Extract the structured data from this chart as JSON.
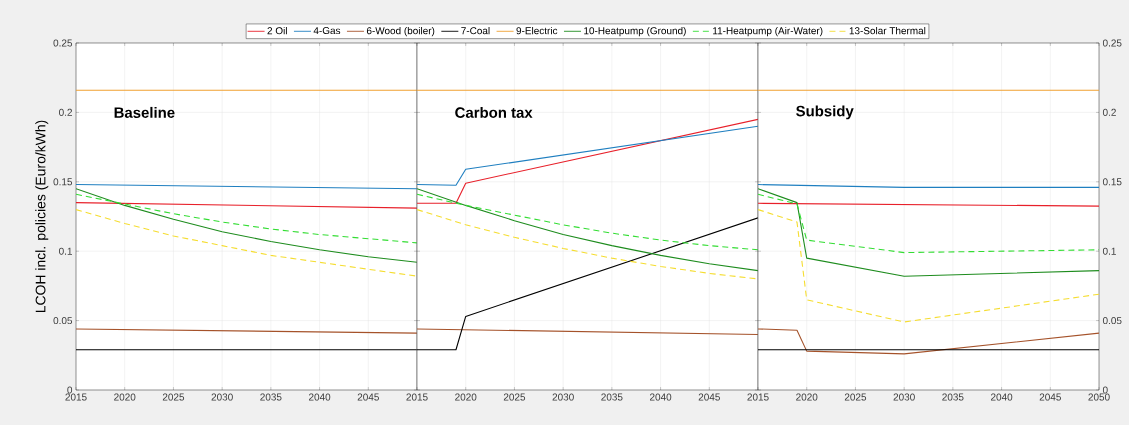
{
  "chart_data": [
    {
      "type": "line",
      "title": "Baseline",
      "ylabel": "LCOH incl. policies (Euro/kWh)",
      "xlim": [
        2015,
        2050
      ],
      "ylim": [
        0,
        0.25
      ],
      "xticks": [
        2015,
        2020,
        2025,
        2030,
        2035,
        2040,
        2045
      ],
      "yticks": [
        0,
        0.05,
        0.1,
        0.15,
        0.2,
        0.25
      ],
      "grid": true,
      "legend": "top",
      "x": [
        2015,
        2020,
        2025,
        2030,
        2035,
        2040,
        2045,
        2050
      ],
      "series": [
        {
          "name": "2 Oil",
          "color": "#e8202a",
          "x": [
            2015,
            2050
          ],
          "values": [
            0.135,
            0.131
          ]
        },
        {
          "name": "4-Gas",
          "color": "#1f7fc0",
          "x": [
            2015,
            2050
          ],
          "values": [
            0.148,
            0.145
          ]
        },
        {
          "name": "6-Wood (boiler)",
          "color": "#a5522a",
          "x": [
            2015,
            2050
          ],
          "values": [
            0.044,
            0.041
          ]
        },
        {
          "name": "7-Coal",
          "color": "#000000",
          "x": [
            2015,
            2050
          ],
          "values": [
            0.029,
            0.029
          ]
        },
        {
          "name": "9-Electric",
          "color": "#f0a030",
          "x": [
            2015,
            2050
          ],
          "values": [
            0.216,
            0.216
          ]
        },
        {
          "name": "10-Heatpump (Ground)",
          "color": "#1e8c1e",
          "values": [
            0.145,
            0.133,
            0.123,
            0.114,
            0.107,
            0.101,
            0.096,
            0.092
          ]
        },
        {
          "name": "11-Heatpump (Air-Water)",
          "color": "#33dd33",
          "line_style": "dashed",
          "values": [
            0.141,
            0.134,
            0.127,
            0.121,
            0.116,
            0.112,
            0.109,
            0.106
          ]
        },
        {
          "name": "13-Solar Thermal",
          "color": "#f5dd30",
          "line_style": "dashed",
          "values": [
            0.13,
            0.12,
            0.111,
            0.104,
            0.097,
            0.092,
            0.087,
            0.082
          ]
        }
      ]
    },
    {
      "type": "line",
      "title": "Carbon tax",
      "xlim": [
        2015,
        2050
      ],
      "ylim": [
        0,
        0.25
      ],
      "xticks": [
        2015,
        2020,
        2025,
        2030,
        2035,
        2040,
        2045
      ],
      "yticks": [
        0,
        0.05,
        0.1,
        0.15,
        0.2,
        0.25
      ],
      "grid": true,
      "tick_labels": "x",
      "x": [
        2015,
        2020,
        2025,
        2030,
        2035,
        2040,
        2045,
        2050
      ],
      "series": [
        {
          "color": "#e8202a",
          "x": [
            2015,
            2019,
            2020,
            2050
          ],
          "values": [
            0.1345,
            0.1345,
            0.149,
            0.195
          ]
        },
        {
          "color": "#1f7fc0",
          "x": [
            2015,
            2019,
            2020,
            2050
          ],
          "values": [
            0.148,
            0.1475,
            0.159,
            0.19
          ]
        },
        {
          "color": "#a5522a",
          "x": [
            2015,
            2050
          ],
          "values": [
            0.044,
            0.04
          ]
        },
        {
          "color": "#000000",
          "x": [
            2015,
            2019,
            2020,
            2050
          ],
          "values": [
            0.029,
            0.029,
            0.053,
            0.124
          ]
        },
        {
          "color": "#f0a030",
          "x": [
            2015,
            2050
          ],
          "values": [
            0.216,
            0.216
          ]
        },
        {
          "color": "#1e8c1e",
          "values": [
            0.145,
            0.133,
            0.122,
            0.112,
            0.104,
            0.097,
            0.091,
            0.086
          ]
        },
        {
          "color": "#33dd33",
          "line_style": "dashed",
          "values": [
            0.141,
            0.133,
            0.126,
            0.119,
            0.113,
            0.108,
            0.104,
            0.101
          ]
        },
        {
          "color": "#f5dd30",
          "line_style": "dashed",
          "values": [
            0.13,
            0.119,
            0.11,
            0.102,
            0.095,
            0.089,
            0.084,
            0.08
          ]
        }
      ]
    },
    {
      "type": "line",
      "title": "Subsidy",
      "xlim": [
        2015,
        2050
      ],
      "ylim": [
        0,
        0.25
      ],
      "xticks": [
        2015,
        2020,
        2025,
        2030,
        2035,
        2040,
        2045,
        2050
      ],
      "yticks": [
        0,
        0.05,
        0.1,
        0.15,
        0.2,
        0.25
      ],
      "grid": true,
      "x": [
        2015,
        2019,
        2020,
        2030,
        2050
      ],
      "series": [
        {
          "color": "#e8202a",
          "x": [
            2015,
            2050
          ],
          "values": [
            0.1345,
            0.1325
          ]
        },
        {
          "color": "#1f7fc0",
          "x": [
            2015,
            2030,
            2050
          ],
          "values": [
            0.148,
            0.146,
            0.146
          ]
        },
        {
          "color": "#a5522a",
          "values": [
            0.044,
            0.043,
            0.028,
            0.026,
            0.041
          ]
        },
        {
          "color": "#000000",
          "x": [
            2015,
            2050
          ],
          "values": [
            0.029,
            0.029
          ]
        },
        {
          "color": "#f0a030",
          "x": [
            2015,
            2050
          ],
          "values": [
            0.216,
            0.216
          ]
        },
        {
          "color": "#1e8c1e",
          "values": [
            0.145,
            0.135,
            0.095,
            0.082,
            0.086
          ]
        },
        {
          "color": "#33dd33",
          "line_style": "dashed",
          "values": [
            0.141,
            0.134,
            0.108,
            0.099,
            0.101
          ]
        },
        {
          "color": "#f5dd30",
          "line_style": "dashed",
          "values": [
            0.13,
            0.121,
            0.065,
            0.049,
            0.069
          ]
        }
      ]
    }
  ]
}
